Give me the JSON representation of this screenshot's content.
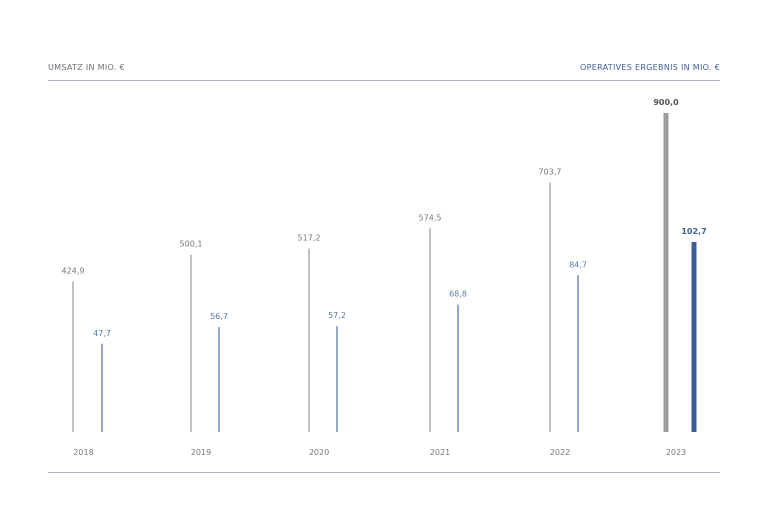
{
  "chart_data": {
    "type": "bar",
    "left_title": "UMSATZ IN MIO. €",
    "right_title": "OPERATIVES ERGEBNIS IN MIO. €",
    "categories": [
      "2018",
      "2019",
      "2020",
      "2021",
      "2022",
      "2023"
    ],
    "series": [
      {
        "name": "UMSATZ IN MIO. €",
        "values": [
          424.9,
          500.1,
          517.2,
          574.5,
          703.7,
          900.0
        ],
        "labels": [
          "424,9",
          "500,1",
          "517,2",
          "574,5",
          "703,7",
          "900,0"
        ],
        "color": "#a0a0a0",
        "highlight_color": "#9b9b9b"
      },
      {
        "name": "OPERATIVES ERGEBNIS IN MIO. €",
        "values": [
          47.7,
          56.7,
          57.2,
          68.8,
          84.7,
          102.7
        ],
        "labels": [
          "47,7",
          "56,7",
          "57,2",
          "68,8",
          "84,7",
          "102,7"
        ],
        "color": "#5a78a8",
        "highlight_color": "#3a5f96"
      }
    ],
    "highlight_category": "2023",
    "grid": false
  }
}
